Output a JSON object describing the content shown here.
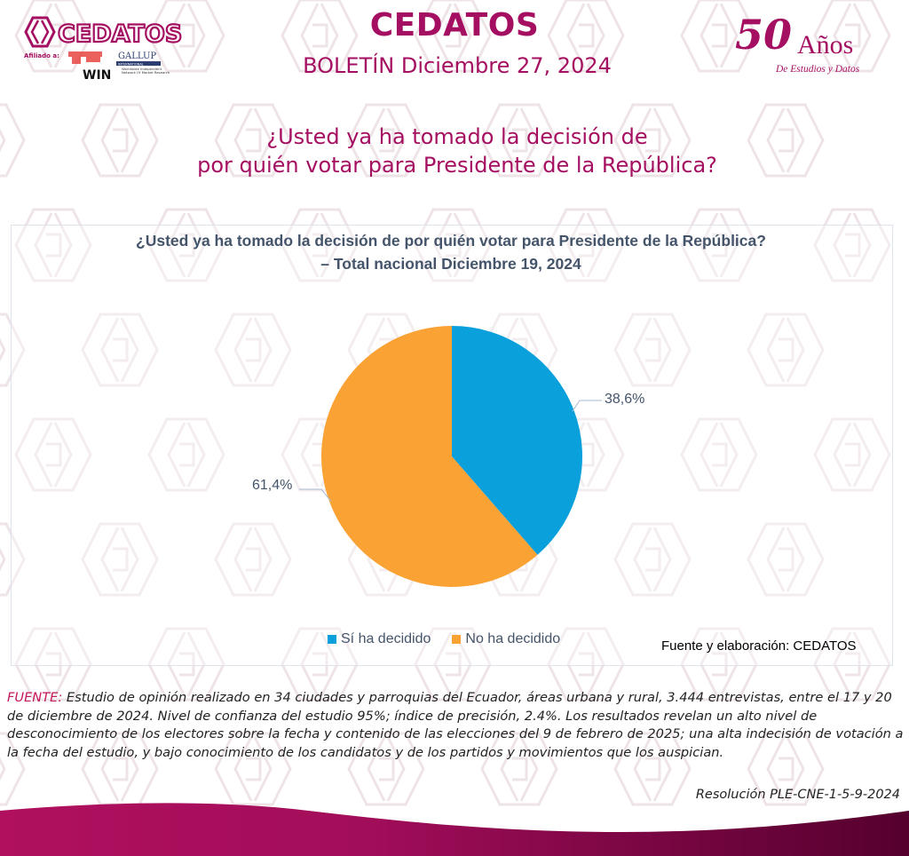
{
  "header": {
    "logo_text": "CEDATOS",
    "affiliation_label": "Afiliado a:",
    "affiliate_1": "GALLUP",
    "affiliate_1_sub": "INTERNATIONAL",
    "affiliate_2": "WIN",
    "affiliate_2_sub": "Worldwide Independent Network Of Market Research",
    "title": "CEDATOS",
    "bulletin": "BOLETÍN Diciembre 27, 2024",
    "anniversary_number": "50",
    "anniversary_word": "Años",
    "anniversary_tagline": "De Estudios y Datos"
  },
  "question": {
    "line1": "¿Usted ya ha tomado la decisión de",
    "line2": "por quién votar para Presidente de la República?"
  },
  "chart_data": {
    "type": "pie",
    "title": "¿Usted ya ha tomado la decisión de por quién votar para Presidente de la República?",
    "subtitle": "–  Total nacional Diciembre 19, 2024",
    "categories": [
      "Sí ha decidido",
      "No ha decidido"
    ],
    "values": [
      38.6,
      61.4
    ],
    "labels": [
      "38,6%",
      "61,4%"
    ],
    "colors": [
      "#0aa0dc",
      "#fba234"
    ],
    "start_angle": "12 o'clock, clockwise",
    "legend_position": "bottom",
    "source": "Fuente y elaboración: CEDATOS"
  },
  "footer": {
    "label": "FUENTE:",
    "text": " Estudio de opinión realizado en 34 ciudades y parroquias del Ecuador, áreas urbana y rural, 3.444 entrevistas, entre el 17 y 20 de diciembre de 2024. Nivel de confianza del estudio 95%; índice de precisión, 2.4%. Los resultados revelan un alto nivel de desconocimiento de los electores sobre la fecha y contenido de las elecciones del 9 de febrero de 2025; una alta indecisión de votación a la fecha del estudio, y bajo conocimiento de los candidatos y de los partidos y movimientos que los auspician.",
    "resolution": "Resolución PLE-CNE-1-5-9-2024"
  },
  "colors": {
    "brand": "#a50f62",
    "wave_start": "#b0105e",
    "wave_end": "#55002e"
  }
}
